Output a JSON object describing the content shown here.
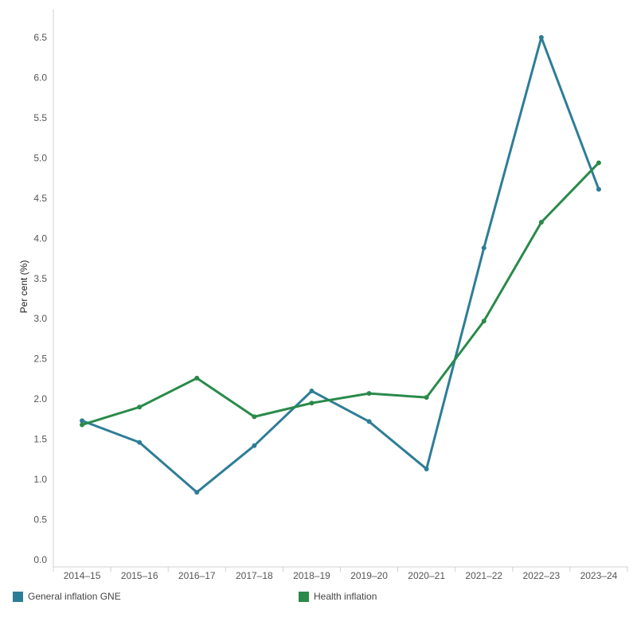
{
  "chart_data": {
    "type": "line",
    "x": [
      "2014–15",
      "2015–16",
      "2016–17",
      "2017–18",
      "2018–19",
      "2019–20",
      "2020–21",
      "2021–22",
      "2022–23",
      "2023–24"
    ],
    "series": [
      {
        "name": "General inflation GNE",
        "color": "#2e7d97",
        "values": [
          1.73,
          1.46,
          0.84,
          1.42,
          2.1,
          1.72,
          1.13,
          3.88,
          6.5,
          4.61
        ]
      },
      {
        "name": "Health inflation",
        "color": "#2a8a4a",
        "values": [
          1.68,
          1.9,
          2.26,
          1.78,
          1.95,
          2.07,
          2.02,
          2.97,
          4.2,
          4.94
        ]
      }
    ],
    "ylabel": "Per cent (%)",
    "xlabel": "",
    "ylim": [
      0,
      6.5
    ],
    "yticks": [
      "0.0",
      "0.5",
      "1.0",
      "1.5",
      "2.0",
      "2.5",
      "3.0",
      "3.5",
      "4.0",
      "4.5",
      "5.0",
      "5.5",
      "6.0",
      "6.5"
    ],
    "grid": false,
    "legend": "bottom"
  }
}
